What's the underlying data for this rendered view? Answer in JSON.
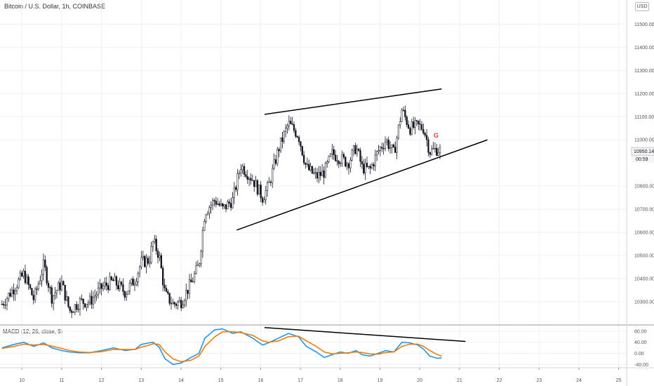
{
  "header": {
    "title": "Bitcoin / U.S. Dollar, 1h, COINBASE",
    "currency": "USD"
  },
  "chart_data": [
    {
      "type": "candlestick",
      "title": "Bitcoin / U.S. Dollar, 1h, COINBASE",
      "ylim": [
        10200,
        11580
      ],
      "y_ticks": [
        "11500.00",
        "11400.00",
        "11300.00",
        "11200.00",
        "11100.00",
        "11000.00",
        "10800.00",
        "10700.00",
        "10600.00",
        "10500.00",
        "10400.00",
        "10300.00"
      ],
      "x_ticks": [
        "10",
        "11",
        "12",
        "13",
        "14",
        "15",
        "16",
        "17",
        "18",
        "19",
        "20",
        "21",
        "22",
        "23",
        "24",
        "25"
      ],
      "x_tick_days": [
        10,
        11,
        12,
        13,
        14,
        15,
        16,
        17,
        18,
        19,
        20,
        21,
        22,
        23,
        24,
        25
      ],
      "x_range": [
        9.45,
        25.2
      ],
      "current_price": "10950.14",
      "countdown": "00:59",
      "annotation": {
        "text": "G",
        "color": "#e53935",
        "day": 20.35,
        "price": 11010
      },
      "waypoints": [
        [
          9.5,
          10290
        ],
        [
          9.8,
          10360
        ],
        [
          10.05,
          10420
        ],
        [
          10.3,
          10310
        ],
        [
          10.55,
          10460
        ],
        [
          10.75,
          10320
        ],
        [
          11.0,
          10380
        ],
        [
          11.2,
          10260
        ],
        [
          11.45,
          10300
        ],
        [
          11.7,
          10300
        ],
        [
          12.0,
          10360
        ],
        [
          12.3,
          10390
        ],
        [
          12.6,
          10340
        ],
        [
          12.85,
          10400
        ],
        [
          13.0,
          10470
        ],
        [
          13.2,
          10480
        ],
        [
          13.3,
          10560
        ],
        [
          13.45,
          10500
        ],
        [
          13.6,
          10330
        ],
        [
          13.8,
          10290
        ],
        [
          14.0,
          10300
        ],
        [
          14.25,
          10380
        ],
        [
          14.45,
          10460
        ],
        [
          14.6,
          10690
        ],
        [
          14.85,
          10740
        ],
        [
          15.05,
          10700
        ],
        [
          15.3,
          10740
        ],
        [
          15.5,
          10890
        ],
        [
          15.8,
          10830
        ],
        [
          16.05,
          10750
        ],
        [
          16.2,
          10800
        ],
        [
          16.45,
          10960
        ],
        [
          16.7,
          11070
        ],
        [
          16.95,
          11020
        ],
        [
          17.15,
          10880
        ],
        [
          17.4,
          10840
        ],
        [
          17.6,
          10860
        ],
        [
          17.8,
          10940
        ],
        [
          18.0,
          10920
        ],
        [
          18.2,
          10900
        ],
        [
          18.4,
          10970
        ],
        [
          18.55,
          10880
        ],
        [
          18.75,
          10870
        ],
        [
          18.95,
          10950
        ],
        [
          19.15,
          11000
        ],
        [
          19.35,
          10940
        ],
        [
          19.55,
          11130
        ],
        [
          19.75,
          11050
        ],
        [
          19.95,
          11060
        ],
        [
          20.1,
          11050
        ],
        [
          20.25,
          10950
        ],
        [
          20.45,
          10960
        ],
        [
          20.55,
          10950
        ]
      ],
      "trendlines": [
        {
          "name": "upper",
          "from": [
            16.1,
            11110
          ],
          "to": [
            20.55,
            11220
          ]
        },
        {
          "name": "lower",
          "from": [
            15.4,
            10610
          ],
          "to": [
            21.7,
            11000
          ]
        }
      ]
    },
    {
      "type": "line",
      "title": "MACD (12, 26, close, 9)",
      "ylim": [
        -52,
        100
      ],
      "y_ticks": [
        80,
        40,
        0,
        -40
      ],
      "y_tick_labels": [
        "80.00",
        "40.00",
        "0.00",
        "-40.00"
      ],
      "series": [
        {
          "name": "MACD",
          "color": "#2196f3",
          "points": [
            [
              9.5,
              20
            ],
            [
              9.8,
              32
            ],
            [
              10.05,
              40
            ],
            [
              10.3,
              25
            ],
            [
              10.55,
              38
            ],
            [
              10.75,
              20
            ],
            [
              11.0,
              10
            ],
            [
              11.2,
              5
            ],
            [
              11.45,
              2
            ],
            [
              11.7,
              2
            ],
            [
              12.0,
              10
            ],
            [
              12.3,
              20
            ],
            [
              12.6,
              10
            ],
            [
              12.85,
              15
            ],
            [
              13.0,
              32
            ],
            [
              13.2,
              38
            ],
            [
              13.3,
              40
            ],
            [
              13.45,
              22
            ],
            [
              13.6,
              -20
            ],
            [
              13.8,
              -40
            ],
            [
              14.0,
              -35
            ],
            [
              14.25,
              -15
            ],
            [
              14.45,
              0
            ],
            [
              14.6,
              55
            ],
            [
              14.85,
              85
            ],
            [
              15.05,
              88
            ],
            [
              15.3,
              72
            ],
            [
              15.5,
              78
            ],
            [
              15.8,
              55
            ],
            [
              16.05,
              30
            ],
            [
              16.2,
              38
            ],
            [
              16.45,
              55
            ],
            [
              16.7,
              72
            ],
            [
              16.95,
              60
            ],
            [
              17.15,
              25
            ],
            [
              17.4,
              5
            ],
            [
              17.6,
              -15
            ],
            [
              17.8,
              -5
            ],
            [
              18.0,
              5
            ],
            [
              18.2,
              0
            ],
            [
              18.4,
              10
            ],
            [
              18.55,
              -5
            ],
            [
              18.75,
              -10
            ],
            [
              18.95,
              0
            ],
            [
              19.15,
              10
            ],
            [
              19.35,
              5
            ],
            [
              19.55,
              40
            ],
            [
              19.75,
              38
            ],
            [
              19.95,
              30
            ],
            [
              20.1,
              15
            ],
            [
              20.25,
              -10
            ],
            [
              20.45,
              -18
            ],
            [
              20.55,
              -16
            ]
          ]
        },
        {
          "name": "Signal",
          "color": "#f57c00",
          "points": [
            [
              9.5,
              18
            ],
            [
              9.8,
              25
            ],
            [
              10.05,
              33
            ],
            [
              10.3,
              30
            ],
            [
              10.55,
              32
            ],
            [
              10.75,
              26
            ],
            [
              11.0,
              18
            ],
            [
              11.2,
              10
            ],
            [
              11.45,
              5
            ],
            [
              11.7,
              3
            ],
            [
              12.0,
              6
            ],
            [
              12.3,
              14
            ],
            [
              12.6,
              14
            ],
            [
              12.85,
              14
            ],
            [
              13.0,
              22
            ],
            [
              13.2,
              30
            ],
            [
              13.3,
              35
            ],
            [
              13.45,
              32
            ],
            [
              13.6,
              5
            ],
            [
              13.8,
              -20
            ],
            [
              14.0,
              -30
            ],
            [
              14.25,
              -25
            ],
            [
              14.45,
              -10
            ],
            [
              14.6,
              25
            ],
            [
              14.85,
              60
            ],
            [
              15.05,
              78
            ],
            [
              15.3,
              78
            ],
            [
              15.5,
              75
            ],
            [
              15.8,
              65
            ],
            [
              16.05,
              45
            ],
            [
              16.2,
              40
            ],
            [
              16.45,
              45
            ],
            [
              16.7,
              60
            ],
            [
              16.95,
              62
            ],
            [
              17.15,
              45
            ],
            [
              17.4,
              25
            ],
            [
              17.6,
              5
            ],
            [
              17.8,
              -2
            ],
            [
              18.0,
              0
            ],
            [
              18.2,
              2
            ],
            [
              18.4,
              5
            ],
            [
              18.55,
              3
            ],
            [
              18.75,
              -2
            ],
            [
              18.95,
              -3
            ],
            [
              19.15,
              3
            ],
            [
              19.35,
              5
            ],
            [
              19.55,
              25
            ],
            [
              19.75,
              33
            ],
            [
              19.95,
              33
            ],
            [
              20.1,
              25
            ],
            [
              20.25,
              10
            ],
            [
              20.45,
              -5
            ],
            [
              20.55,
              -10
            ]
          ]
        }
      ],
      "trendlines": [
        {
          "name": "divergence",
          "from": [
            16.1,
            93
          ],
          "to": [
            21.15,
            43
          ]
        }
      ]
    }
  ]
}
